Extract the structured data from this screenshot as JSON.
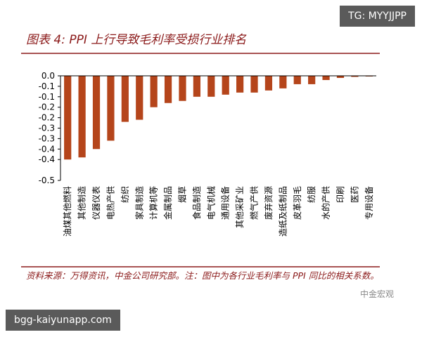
{
  "watermark_top": "TG: MYYJJPP",
  "watermark_logo": "中金宏观",
  "footer_url": "bgg-kaiyunapp.com",
  "chart_data": {
    "type": "bar",
    "title": "图表 4: PPI 上行导致毛利率受损行业排名",
    "source": "资料来源：万得资讯，中金公司研究部。注：图中为各行业毛利率与 PPI 同比的相关系数。",
    "categories": [
      "油煤其他燃料",
      "其他制造",
      "仪器仪表",
      "电热产供",
      "纺织",
      "家具制造",
      "计算机等",
      "金属制品",
      "烟草",
      "食品制造",
      "电气机械",
      "通用设备",
      "其他采矿业",
      "燃气产供",
      "废弃资源",
      "造纸及纸制品",
      "皮革羽毛",
      "纺服",
      "水的产供",
      "印刷",
      "医药",
      "专用设备"
    ],
    "values": [
      -0.4,
      -0.39,
      -0.35,
      -0.31,
      -0.22,
      -0.21,
      -0.15,
      -0.13,
      -0.12,
      -0.1,
      -0.1,
      -0.09,
      -0.08,
      -0.08,
      -0.07,
      -0.06,
      -0.04,
      -0.04,
      -0.02,
      -0.01,
      -0.005,
      -0.003
    ],
    "color": "#b5451b",
    "ylim": [
      -0.5,
      0
    ],
    "yticks": [
      {
        "value": 0,
        "label": "0.0"
      },
      {
        "value": -0.05,
        "label": "-0.1"
      },
      {
        "value": -0.1,
        "label": "-0.1"
      },
      {
        "value": -0.15,
        "label": "-0.2"
      },
      {
        "value": -0.2,
        "label": "-0.2"
      },
      {
        "value": -0.25,
        "label": "-0.3"
      },
      {
        "value": -0.3,
        "label": "-0.3"
      },
      {
        "value": -0.35,
        "label": "-0.4"
      },
      {
        "value": -0.4,
        "label": "-0.4"
      },
      {
        "value": -0.5,
        "label": "-0.5"
      }
    ],
    "grid": false
  }
}
